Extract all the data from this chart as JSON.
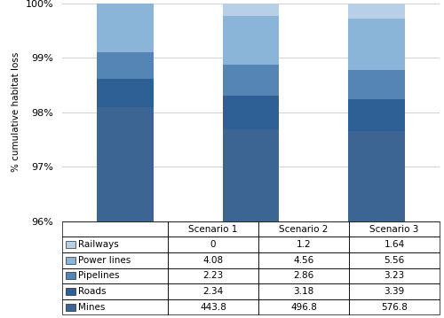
{
  "categories": [
    "Scenario 1",
    "Scenario 2",
    "Scenario 3"
  ],
  "series": {
    "Mines": [
      443.8,
      496.8,
      576.8
    ],
    "Roads": [
      2.34,
      3.18,
      3.39
    ],
    "Pipelines": [
      2.23,
      2.86,
      3.23
    ],
    "Power lines": [
      4.08,
      4.56,
      5.56
    ],
    "Railways": [
      0,
      1.2,
      1.64
    ]
  },
  "colors": {
    "Mines": "#3d6593",
    "Roads": "#2e6096",
    "Pipelines": "#5585b5",
    "Power lines": "#8ab4d8",
    "Railways": "#b8cfe8"
  },
  "ylabel": "% cumulative habitat loss",
  "ylim_min": 96,
  "ylim_max": 100,
  "yticks": [
    96,
    97,
    98,
    99,
    100
  ],
  "ytick_labels": [
    "96%",
    "97%",
    "98%",
    "99%",
    "100%"
  ],
  "table_row_order": [
    "Railways",
    "Power lines",
    "Pipelines",
    "Roads",
    "Mines"
  ],
  "table_rows": {
    "Railways": [
      "0",
      "1.2",
      "1.64"
    ],
    "Power lines": [
      "4.08",
      "4.56",
      "5.56"
    ],
    "Pipelines": [
      "2.23",
      "2.86",
      "3.23"
    ],
    "Roads": [
      "2.34",
      "3.18",
      "3.39"
    ],
    "Mines": [
      "443.8",
      "496.8",
      "576.8"
    ]
  },
  "bar_width": 0.45,
  "legend_colors": {
    "Railways": "#b8cfe8",
    "Power lines": "#8ab4d8",
    "Pipelines": "#5585b5",
    "Roads": "#2e6096",
    "Mines": "#3d6593"
  }
}
